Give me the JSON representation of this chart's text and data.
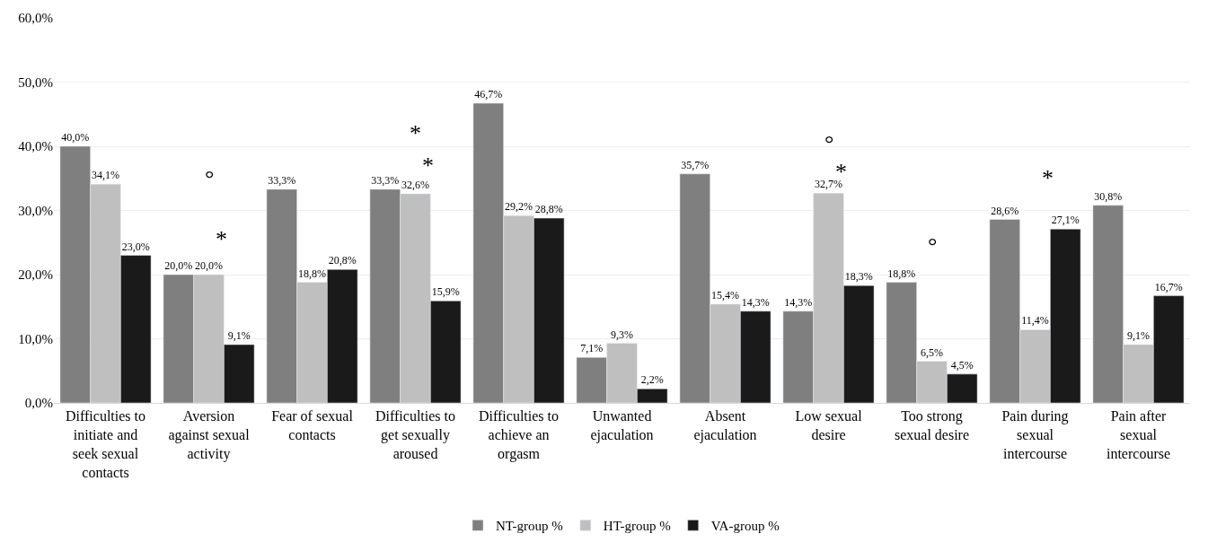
{
  "chart_data": {
    "type": "bar",
    "categories": [
      "Difficulties to initiate and seek sexual contacts",
      "Aversion against sexual activity",
      "Fear of sexual contacts",
      "Difficulties to get sexually aroused",
      "Difficulties to achieve an orgasm",
      "Unwanted ejaculation",
      "Absent ejaculation",
      "Low sexual desire",
      "Too strong sexual desire",
      "Pain during sexual intercourse",
      "Pain after sexual intercourse"
    ],
    "series": [
      {
        "name": "NT-group %",
        "color": "#7f7f7f",
        "values": [
          40.0,
          20.0,
          33.3,
          33.3,
          46.7,
          7.1,
          35.7,
          14.3,
          18.8,
          28.6,
          30.8
        ],
        "value_labels": [
          "40,0%",
          "20,0%",
          "33,3%",
          "33,3%",
          "46,7%",
          "7,1%",
          "35,7%",
          "14,3%",
          "18,8%",
          "28,6%",
          "30,8%"
        ]
      },
      {
        "name": "HT-group %",
        "color": "#bfbfbf",
        "values": [
          34.1,
          20.0,
          18.8,
          32.6,
          29.2,
          9.3,
          15.4,
          32.7,
          6.5,
          11.4,
          9.1
        ],
        "value_labels": [
          "34,1%",
          "20,0%",
          "18,8%",
          "32,6%",
          "29,2%",
          "9,3%",
          "15,4%",
          "32,7%",
          "6,5%",
          "11,4%",
          "9,1%"
        ]
      },
      {
        "name": "VA-group %",
        "color": "#1a1a1a",
        "values": [
          23.0,
          9.1,
          20.8,
          15.9,
          28.8,
          2.2,
          14.3,
          18.3,
          4.5,
          27.1,
          16.7
        ],
        "value_labels": [
          "23,0%",
          "9,1%",
          "20,8%",
          "15,9%",
          "28,8%",
          "2,2%",
          "14,3%",
          "18,3%",
          "4,5%",
          "27,1%",
          "16,7%"
        ]
      }
    ],
    "ylim": [
      0,
      60
    ],
    "yticks": [
      {
        "value": 0,
        "label": "0,0%"
      },
      {
        "value": 10,
        "label": "10,0%"
      },
      {
        "value": 20,
        "label": "20,0%"
      },
      {
        "value": 30,
        "label": "30,0%"
      },
      {
        "value": 40,
        "label": "40,0%"
      },
      {
        "value": 50,
        "label": "50,0%"
      },
      {
        "value": 60,
        "label": "60,0%"
      }
    ],
    "grid": "y",
    "legend": "bottom",
    "annotations": [
      "°",
      "*",
      "*",
      "*",
      "°",
      "*",
      "°",
      "*"
    ]
  }
}
